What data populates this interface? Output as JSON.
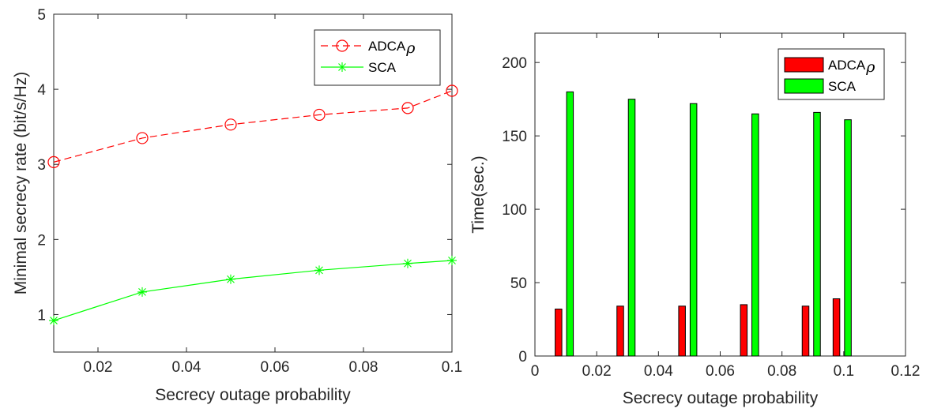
{
  "chart_data": [
    {
      "type": "line",
      "xlabel": "Secrecy outage probability",
      "ylabel": "Minimal secrecy rate (bit/s/Hz)",
      "xlim": [
        0.01,
        0.1
      ],
      "ylim": [
        0.5,
        5
      ],
      "xticks": [
        0.02,
        0.04,
        0.06,
        0.08,
        0.1
      ],
      "xtick_labels": [
        "0.02",
        "0.04",
        "0.06",
        "0.08",
        "0.1"
      ],
      "yticks": [
        1,
        2,
        3,
        4,
        5
      ],
      "ytick_labels": [
        "1",
        "2",
        "3",
        "4",
        "5"
      ],
      "x": [
        0.01,
        0.03,
        0.05,
        0.07,
        0.09,
        0.1
      ],
      "series": [
        {
          "name": "ADCA",
          "name_symbol": "ρ",
          "color": "#ff0000",
          "dash": "dashed",
          "marker": "circle",
          "values": [
            3.03,
            3.35,
            3.53,
            3.66,
            3.75,
            3.98
          ]
        },
        {
          "name": "SCA",
          "color": "#00ff00",
          "dash": "solid",
          "marker": "asterisk",
          "values": [
            0.92,
            1.3,
            1.47,
            1.59,
            1.68,
            1.72
          ]
        }
      ],
      "legend": "top-right",
      "grid": false
    },
    {
      "type": "bar",
      "xlabel": "Secrecy outage probability",
      "ylabel": "Time(sec.)",
      "xlim": [
        0,
        0.12
      ],
      "ylim": [
        0,
        220
      ],
      "xticks": [
        0,
        0.02,
        0.04,
        0.06,
        0.08,
        0.1,
        0.12
      ],
      "xtick_labels": [
        "0",
        "0.02",
        "0.04",
        "0.06",
        "0.08",
        "0.1",
        "0.12"
      ],
      "yticks": [
        0,
        50,
        100,
        150,
        200
      ],
      "ytick_labels": [
        "0",
        "50",
        "100",
        "150",
        "200"
      ],
      "x": [
        0.01,
        0.03,
        0.05,
        0.07,
        0.09,
        0.1
      ],
      "series": [
        {
          "name": "ADCA",
          "name_symbol": "ρ",
          "color": "#ff0000",
          "values": [
            32,
            34,
            34,
            35,
            34,
            39
          ]
        },
        {
          "name": "SCA",
          "color": "#00ff00",
          "values": [
            180,
            175,
            172,
            165,
            166,
            161
          ]
        }
      ],
      "legend": "top-right",
      "grid": false
    }
  ]
}
